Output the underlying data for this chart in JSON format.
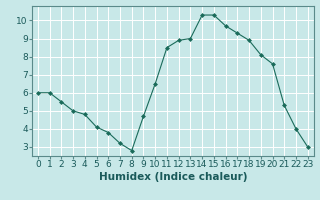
{
  "x": [
    0,
    1,
    2,
    3,
    4,
    5,
    6,
    7,
    8,
    9,
    10,
    11,
    12,
    13,
    14,
    15,
    16,
    17,
    18,
    19,
    20,
    21,
    22,
    23
  ],
  "y": [
    6.0,
    6.0,
    5.5,
    5.0,
    4.8,
    4.1,
    3.8,
    3.2,
    2.8,
    4.7,
    6.5,
    8.5,
    8.9,
    9.0,
    10.3,
    10.3,
    9.7,
    9.3,
    8.9,
    8.1,
    7.6,
    5.3,
    4.0,
    3.0
  ],
  "line_color": "#1a6b5a",
  "marker": "D",
  "marker_size": 2.0,
  "bg_color": "#c8e8e8",
  "grid_color": "#ffffff",
  "xlabel": "Humidex (Indice chaleur)",
  "xlim": [
    -0.5,
    23.5
  ],
  "ylim": [
    2.5,
    10.8
  ],
  "xticks": [
    0,
    1,
    2,
    3,
    4,
    5,
    6,
    7,
    8,
    9,
    10,
    11,
    12,
    13,
    14,
    15,
    16,
    17,
    18,
    19,
    20,
    21,
    22,
    23
  ],
  "yticks": [
    3,
    4,
    5,
    6,
    7,
    8,
    9,
    10
  ],
  "tick_fontsize": 6.5,
  "xlabel_fontsize": 7.5,
  "axis_bg": "#c8e8e8",
  "spine_color": "#5a8a8a"
}
